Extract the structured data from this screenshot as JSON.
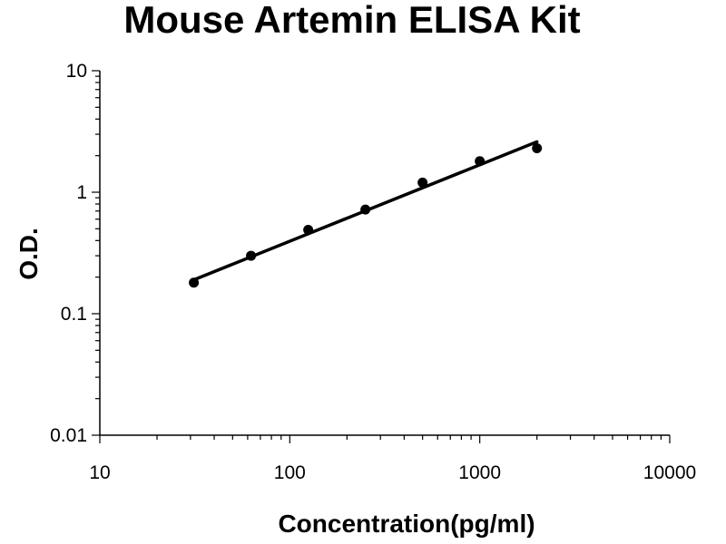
{
  "chart_data": {
    "type": "scatter",
    "title": "Mouse Artemin ELISA Kit",
    "xlabel": "Concentration(pg/ml)",
    "ylabel": "O.D.",
    "x_scale": "log",
    "y_scale": "log",
    "xlim": [
      10,
      10000
    ],
    "ylim": [
      0.01,
      10
    ],
    "x_ticks": [
      "10",
      "100",
      "1000",
      "10000"
    ],
    "y_ticks": [
      "0.01",
      "0.1",
      "1",
      "10"
    ],
    "grid": false,
    "legend": "none",
    "series": [
      {
        "kind": "points",
        "x": [
          31.25,
          62.5,
          125,
          250,
          500,
          1000,
          2000
        ],
        "y": [
          0.18,
          0.3,
          0.49,
          0.72,
          1.2,
          1.8,
          2.3
        ]
      },
      {
        "kind": "fit-line",
        "x": [
          31.25,
          2000
        ],
        "y": [
          0.19,
          2.6
        ]
      }
    ],
    "colors": {
      "points": "#000000",
      "line": "#000000",
      "axes": "#000000"
    }
  }
}
